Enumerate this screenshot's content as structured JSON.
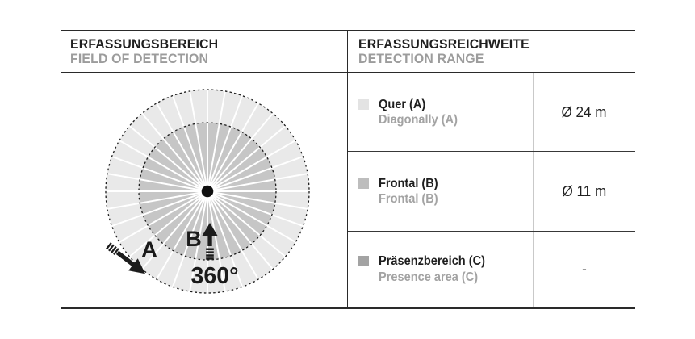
{
  "left_panel": {
    "title": "ERFASSUNGSBEREICH",
    "subtitle": "FIELD OF DETECTION",
    "diagram": {
      "rotation_label": "360°",
      "label_a": "A",
      "label_b": "B",
      "sector_count": 36,
      "outer_zone_color": "#e9e9e9",
      "inner_zone_color": "#c6c6c6",
      "spoke_color": "#ffffff",
      "outline_color": "#1c1c1c",
      "center_dot_color": "#111111",
      "label_color": "#1a1a1a"
    }
  },
  "right_panel": {
    "title": "ERFASSUNGSREICHWEITE",
    "subtitle": "DETECTION RANGE",
    "rows": [
      {
        "label_de": "Quer (A)",
        "label_en": "Diagonally (A)",
        "value": "Ø 24 m",
        "swatch_color": "#e3e3e3",
        "swatch_style": "background:#e3e3e3"
      },
      {
        "label_de": "Frontal (B)",
        "label_en": "Frontal (B)",
        "value": "Ø 11 m",
        "swatch_color": "#bdbdbd",
        "swatch_style": "background:#bdbdbd"
      },
      {
        "label_de": "Präsenzbereich (C)",
        "label_en": "Presence area (C)",
        "value": "-",
        "swatch_color": "#a3a3a3",
        "swatch_style": "background:#a3a3a3"
      }
    ]
  }
}
